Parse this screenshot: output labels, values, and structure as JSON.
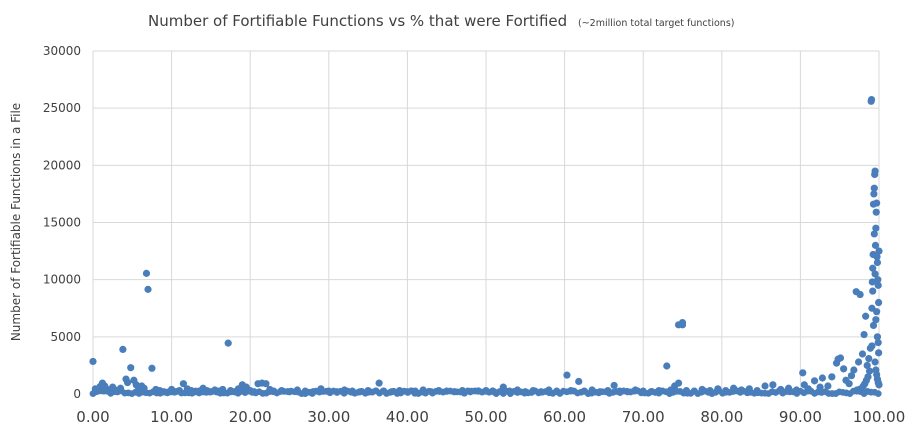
{
  "chart_data": {
    "type": "scatter",
    "title": "Number of Fortifiable Functions vs % that were Fortified",
    "subtitle": "(~2million total target functions)",
    "xlabel": "",
    "ylabel": "Number of Fortifiable Functions in a File",
    "xlim": [
      0,
      100
    ],
    "ylim": [
      0,
      30000
    ],
    "x_ticks": [
      "0.00",
      "10.00",
      "20.00",
      "30.00",
      "40.00",
      "50.00",
      "60.00",
      "70.00",
      "80.00",
      "90.00",
      "100.00"
    ],
    "y_ticks": [
      "0",
      "5000",
      "10000",
      "15000",
      "20000",
      "25000",
      "30000"
    ],
    "grid": "vertical and horizontal gridlines",
    "legend": "none",
    "marker_color": "#4a7ebb",
    "points": [
      [
        0,
        2850
      ],
      [
        0.3,
        450
      ],
      [
        0.6,
        300
      ],
      [
        0.9,
        650
      ],
      [
        1.2,
        950
      ],
      [
        1.5,
        700
      ],
      [
        1.8,
        400
      ],
      [
        2.1,
        300
      ],
      [
        2.5,
        600
      ],
      [
        2.8,
        350
      ],
      [
        3.1,
        200
      ],
      [
        3.5,
        500
      ],
      [
        3.8,
        3900
      ],
      [
        4.2,
        1300
      ],
      [
        4.4,
        1000
      ],
      [
        4.8,
        2300
      ],
      [
        5.2,
        1200
      ],
      [
        5.5,
        800
      ],
      [
        5.8,
        400
      ],
      [
        6.2,
        700
      ],
      [
        6.5,
        500
      ],
      [
        6.8,
        10550
      ],
      [
        7.0,
        9150
      ],
      [
        7.5,
        2250
      ],
      [
        8.0,
        400
      ],
      [
        8.5,
        300
      ],
      [
        9.0,
        200
      ],
      [
        9.5,
        150
      ],
      [
        10.0,
        400
      ],
      [
        10.5,
        200
      ],
      [
        11.0,
        300
      ],
      [
        11.5,
        900
      ],
      [
        12.0,
        450
      ],
      [
        12.5,
        300
      ],
      [
        13.0,
        200
      ],
      [
        13.5,
        250
      ],
      [
        14.0,
        500
      ],
      [
        14.5,
        300
      ],
      [
        15.0,
        200
      ],
      [
        15.5,
        350
      ],
      [
        16.0,
        250
      ],
      [
        16.5,
        400
      ],
      [
        17.2,
        4450
      ],
      [
        17.5,
        300
      ],
      [
        18.0,
        200
      ],
      [
        18.5,
        450
      ],
      [
        19.0,
        800
      ],
      [
        19.5,
        600
      ],
      [
        20.0,
        300
      ],
      [
        20.5,
        200
      ],
      [
        21.0,
        900
      ],
      [
        21.5,
        950
      ],
      [
        22.0,
        900
      ],
      [
        22.5,
        400
      ],
      [
        23.0,
        250
      ],
      [
        24.0,
        300
      ],
      [
        25.0,
        200
      ],
      [
        26.0,
        350
      ],
      [
        27.0,
        250
      ],
      [
        28.0,
        200
      ],
      [
        29.0,
        450
      ],
      [
        30.0,
        250
      ],
      [
        31.0,
        200
      ],
      [
        32.0,
        350
      ],
      [
        33.0,
        250
      ],
      [
        34.0,
        200
      ],
      [
        35.0,
        300
      ],
      [
        36.4,
        950
      ],
      [
        37.0,
        250
      ],
      [
        38.0,
        200
      ],
      [
        39.0,
        300
      ],
      [
        40.0,
        200
      ],
      [
        41.0,
        250
      ],
      [
        42.0,
        350
      ],
      [
        43.0,
        200
      ],
      [
        44.0,
        300
      ],
      [
        45.0,
        250
      ],
      [
        46.0,
        200
      ],
      [
        47.0,
        300
      ],
      [
        48.0,
        200
      ],
      [
        49.0,
        250
      ],
      [
        50.0,
        300
      ],
      [
        51.0,
        200
      ],
      [
        52.2,
        600
      ],
      [
        53.0,
        250
      ],
      [
        54.0,
        350
      ],
      [
        55.0,
        200
      ],
      [
        56.0,
        300
      ],
      [
        57.0,
        200
      ],
      [
        58.0,
        350
      ],
      [
        59.0,
        250
      ],
      [
        60.3,
        1650
      ],
      [
        60.8,
        300
      ],
      [
        61.8,
        1100
      ],
      [
        62.5,
        250
      ],
      [
        63.5,
        350
      ],
      [
        64.5,
        200
      ],
      [
        65.5,
        300
      ],
      [
        66.3,
        750
      ],
      [
        67.0,
        250
      ],
      [
        68.0,
        200
      ],
      [
        69.0,
        350
      ],
      [
        70.0,
        250
      ],
      [
        71.0,
        200
      ],
      [
        72.0,
        300
      ],
      [
        73.0,
        2450
      ],
      [
        73.5,
        350
      ],
      [
        74.0,
        700
      ],
      [
        74.5,
        950
      ],
      [
        74.5,
        6050
      ],
      [
        75.0,
        6250
      ],
      [
        75.0,
        6050
      ],
      [
        75.5,
        300
      ],
      [
        76.5,
        250
      ],
      [
        77.5,
        400
      ],
      [
        78.5,
        300
      ],
      [
        79.5,
        450
      ],
      [
        80.5,
        300
      ],
      [
        81.5,
        500
      ],
      [
        82.5,
        350
      ],
      [
        83.5,
        450
      ],
      [
        84.5,
        300
      ],
      [
        85.5,
        700
      ],
      [
        86.5,
        800
      ],
      [
        87.5,
        400
      ],
      [
        88.5,
        500
      ],
      [
        89.5,
        350
      ],
      [
        90.3,
        1850
      ],
      [
        90.5,
        800
      ],
      [
        91.0,
        450
      ],
      [
        91.8,
        1150
      ],
      [
        92.5,
        600
      ],
      [
        92.8,
        1400
      ],
      [
        93.5,
        700
      ],
      [
        94.0,
        1500
      ],
      [
        94.6,
        2700
      ],
      [
        94.8,
        3050
      ],
      [
        95.1,
        3150
      ],
      [
        95.5,
        2200
      ],
      [
        95.8,
        1200
      ],
      [
        96.2,
        900
      ],
      [
        96.5,
        1600
      ],
      [
        96.8,
        2100
      ],
      [
        97.1,
        8950
      ],
      [
        97.4,
        2800
      ],
      [
        97.6,
        8700
      ],
      [
        97.9,
        3500
      ],
      [
        98.1,
        5200
      ],
      [
        98.3,
        6800
      ],
      [
        98.5,
        2500
      ],
      [
        98.7,
        3100
      ],
      [
        98.9,
        4000
      ],
      [
        99.0,
        25600
      ],
      [
        99.05,
        25750
      ],
      [
        99.1,
        7500
      ],
      [
        99.15,
        9800
      ],
      [
        99.2,
        11000
      ],
      [
        99.25,
        12200
      ],
      [
        99.3,
        16600
      ],
      [
        99.35,
        17500
      ],
      [
        99.4,
        18000
      ],
      [
        99.45,
        19200
      ],
      [
        99.5,
        19500
      ],
      [
        99.5,
        10500
      ],
      [
        99.55,
        13000
      ],
      [
        99.6,
        14500
      ],
      [
        99.65,
        15900
      ],
      [
        99.7,
        16700
      ],
      [
        99.75,
        12000
      ],
      [
        99.8,
        11500
      ],
      [
        99.85,
        10000
      ],
      [
        99.9,
        9500
      ],
      [
        99.95,
        8000
      ],
      [
        99.6,
        6500
      ],
      [
        99.7,
        7200
      ],
      [
        99.8,
        5000
      ],
      [
        99.9,
        4500
      ],
      [
        99.95,
        3600
      ],
      [
        99.5,
        2800
      ],
      [
        99.6,
        2100
      ],
      [
        99.7,
        1700
      ],
      [
        99.8,
        1300
      ],
      [
        99.9,
        1000
      ],
      [
        100.0,
        800
      ],
      [
        100.0,
        12500
      ],
      [
        99.4,
        14000
      ],
      [
        99.2,
        9000
      ],
      [
        99.3,
        6000
      ],
      [
        99.1,
        4200
      ],
      [
        98.8,
        2000
      ],
      [
        98.6,
        1500
      ],
      [
        98.4,
        1200
      ],
      [
        98.2,
        900
      ],
      [
        98.0,
        700
      ],
      [
        97.8,
        500
      ],
      [
        97.5,
        400
      ],
      [
        97.2,
        350
      ]
    ]
  }
}
